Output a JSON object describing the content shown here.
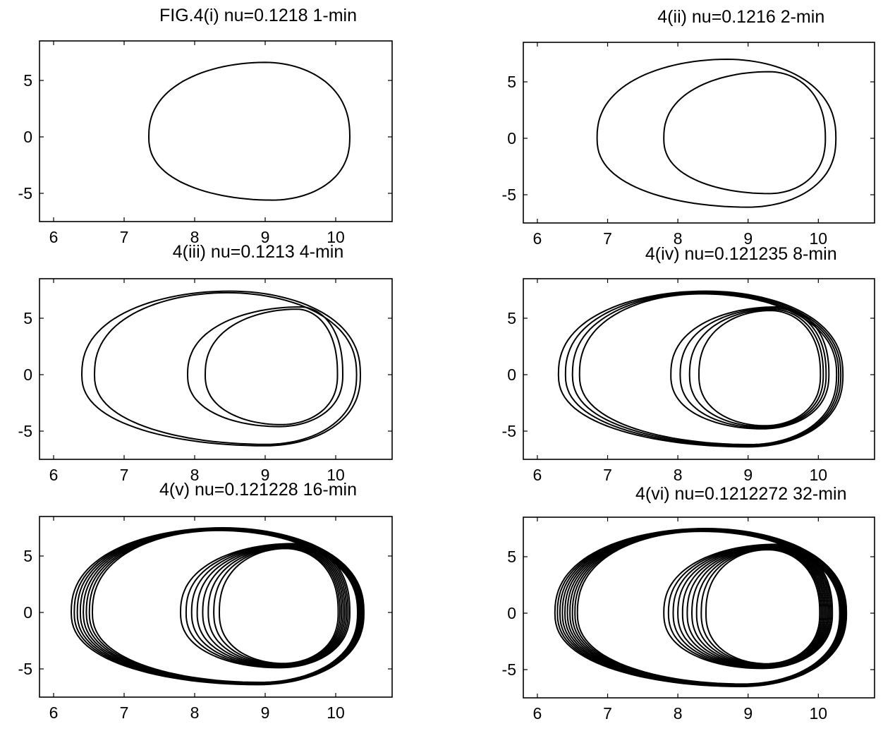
{
  "chart_data": [
    {
      "type": "line",
      "title": "FIG.4(i)  nu=0.1218  1-min",
      "xlim": [
        5.8,
        10.8
      ],
      "ylim": [
        -7.5,
        8.5
      ],
      "xticks": [
        6,
        7,
        8,
        9,
        10
      ],
      "yticks": [
        5,
        0,
        -5
      ],
      "xtick_labels": [
        "6",
        "7",
        "8",
        "9",
        "10"
      ],
      "ytick_labels": [
        "5",
        "0",
        "-5"
      ],
      "grid": false,
      "series": [
        {
          "center_x": 8.8,
          "center_y": 0.5,
          "x_left": 7.35,
          "x_right": 10.2,
          "y_top": 6.6,
          "y_bottom": -5.6,
          "x_at_top": 9.0,
          "x_at_bottom": 9.1,
          "loop_count": 1,
          "stroke_width": 2.0
        }
      ]
    },
    {
      "type": "line",
      "title": "4(ii)  nu=0.1216  2-min",
      "xlim": [
        5.8,
        10.8
      ],
      "ylim": [
        -7.5,
        8.5
      ],
      "xticks": [
        6,
        7,
        8,
        9,
        10
      ],
      "yticks": [
        5,
        0,
        -5
      ],
      "xtick_labels": [
        "6",
        "7",
        "8",
        "9",
        "10"
      ],
      "ytick_labels": [
        "5",
        "0",
        "-5"
      ],
      "grid": false,
      "series": [
        {
          "x_left": 6.85,
          "x_right": 10.25,
          "y_top": 7.0,
          "y_bottom": -6.1,
          "x_at_top": 8.7,
          "x_at_bottom": 9.0,
          "loop_count": 1,
          "stroke_width": 2.0
        },
        {
          "x_left": 7.8,
          "x_right": 10.1,
          "y_top": 5.9,
          "y_bottom": -4.9,
          "x_at_top": 9.3,
          "x_at_bottom": 9.3,
          "loop_count": 1,
          "stroke_width": 2.0
        }
      ]
    },
    {
      "type": "line",
      "title": "4(iii)  nu=0.1213  4-min",
      "xlim": [
        5.8,
        10.8
      ],
      "ylim": [
        -7.5,
        8.5
      ],
      "xticks": [
        6,
        7,
        8,
        9,
        10
      ],
      "yticks": [
        5,
        0,
        -5
      ],
      "xtick_labels": [
        "6",
        "7",
        "8",
        "9",
        "10"
      ],
      "ytick_labels": [
        "5",
        "0",
        "-5"
      ],
      "grid": false,
      "series": [
        {
          "x_left": 6.4,
          "x_right": 10.35,
          "y_top": 7.4,
          "y_bottom": -6.3,
          "x_at_top": 8.5,
          "x_at_bottom": 9.0,
          "loop_count": 2,
          "spread": 0.18,
          "stroke_width": 2.0
        },
        {
          "x_left": 7.9,
          "x_right": 10.1,
          "y_top": 6.0,
          "y_bottom": -4.6,
          "x_at_top": 9.5,
          "x_at_bottom": 9.2,
          "loop_count": 2,
          "spread": 0.25,
          "stroke_width": 2.0
        }
      ]
    },
    {
      "type": "line",
      "title": "4(iv)  nu=0.121235  8-min",
      "xlim": [
        5.8,
        10.8
      ],
      "ylim": [
        -7.5,
        8.5
      ],
      "xticks": [
        6,
        7,
        8,
        9,
        10
      ],
      "yticks": [
        5,
        0,
        -5
      ],
      "xtick_labels": [
        "6",
        "7",
        "8",
        "9",
        "10"
      ],
      "ytick_labels": [
        "5",
        "0",
        "-5"
      ],
      "grid": false,
      "series": [
        {
          "x_left": 6.3,
          "x_right": 10.35,
          "y_top": 7.4,
          "y_bottom": -6.4,
          "x_at_top": 8.4,
          "x_at_bottom": 9.0,
          "loop_count": 4,
          "spread": 0.3,
          "stroke_width": 2.0
        },
        {
          "x_left": 7.9,
          "x_right": 10.15,
          "y_top": 6.0,
          "y_bottom": -4.8,
          "x_at_top": 9.4,
          "x_at_bottom": 9.2,
          "loop_count": 4,
          "spread": 0.4,
          "stroke_width": 2.0
        }
      ]
    },
    {
      "type": "line",
      "title": "4(v)  nu=0.121228  16-min",
      "xlim": [
        5.8,
        10.8
      ],
      "ylim": [
        -7.5,
        8.5
      ],
      "xticks": [
        6,
        7,
        8,
        9,
        10
      ],
      "yticks": [
        5,
        0,
        -5
      ],
      "xtick_labels": [
        "6",
        "7",
        "8",
        "9",
        "10"
      ],
      "ytick_labels": [
        "5",
        "0",
        "-5"
      ],
      "grid": false,
      "series": [
        {
          "x_left": 6.25,
          "x_right": 10.4,
          "y_top": 7.5,
          "y_bottom": -6.4,
          "x_at_top": 8.4,
          "x_at_bottom": 8.9,
          "loop_count": 8,
          "spread": 0.3,
          "stroke_width": 1.8
        },
        {
          "x_left": 7.8,
          "x_right": 10.2,
          "y_top": 6.1,
          "y_bottom": -4.9,
          "x_at_top": 9.4,
          "x_at_bottom": 9.2,
          "loop_count": 8,
          "spread": 0.55,
          "stroke_width": 1.8
        }
      ]
    },
    {
      "type": "line",
      "title": "4(vi)  nu=0.1212272  32-min",
      "xlim": [
        5.8,
        10.8
      ],
      "ylim": [
        -7.5,
        8.5
      ],
      "xticks": [
        6,
        7,
        8,
        9,
        10
      ],
      "yticks": [
        5,
        0,
        -5
      ],
      "xtick_labels": [
        "6",
        "7",
        "8",
        "9",
        "10"
      ],
      "ytick_labels": [
        "5",
        "0",
        "-5"
      ],
      "grid": false,
      "series": [
        {
          "x_left": 6.25,
          "x_right": 10.4,
          "y_top": 7.5,
          "y_bottom": -6.5,
          "x_at_top": 8.4,
          "x_at_bottom": 8.9,
          "loop_count": 10,
          "spread": 0.32,
          "stroke_width": 1.8
        },
        {
          "x_left": 7.8,
          "x_right": 10.2,
          "y_top": 6.1,
          "y_bottom": -4.9,
          "x_at_top": 9.4,
          "x_at_bottom": 9.2,
          "loop_count": 10,
          "spread": 0.6,
          "stroke_width": 1.8
        }
      ]
    }
  ]
}
